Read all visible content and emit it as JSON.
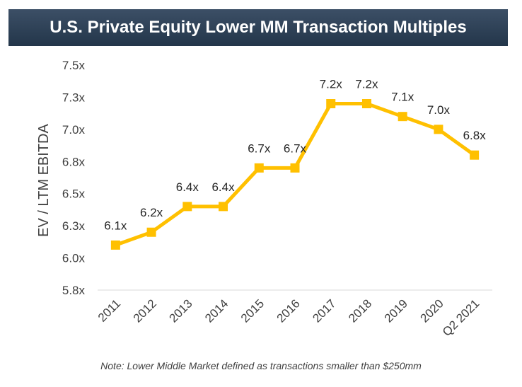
{
  "chart_data": {
    "type": "line",
    "title": "U.S. Private Equity Lower MM Transaction Multiples",
    "xlabel": "",
    "ylabel": "EV / LTM EBITDA",
    "categories": [
      "2011",
      "2012",
      "2013",
      "2014",
      "2015",
      "2016",
      "2017",
      "2018",
      "2019",
      "2020",
      "Q2 2021"
    ],
    "values": [
      6.1,
      6.2,
      6.4,
      6.4,
      6.7,
      6.7,
      7.2,
      7.2,
      7.1,
      7.0,
      6.8
    ],
    "data_labels": [
      "6.1x",
      "6.2x",
      "6.4x",
      "6.4x",
      "6.7x",
      "6.7x",
      "7.2x",
      "7.2x",
      "7.1x",
      "7.0x",
      "6.8x"
    ],
    "yticks": [
      5.75,
      6.0,
      6.25,
      6.5,
      6.75,
      7.0,
      7.25,
      7.5
    ],
    "ytick_labels": [
      "5.8x",
      "6.0x",
      "6.3x",
      "6.5x",
      "6.8x",
      "7.0x",
      "7.3x",
      "7.5x"
    ],
    "ylim": [
      5.75,
      7.5
    ],
    "grid": false,
    "legend": "none",
    "line_color": "#ffc000",
    "note": "Note: Lower Middle Market defined as transactions smaller than $250mm"
  }
}
